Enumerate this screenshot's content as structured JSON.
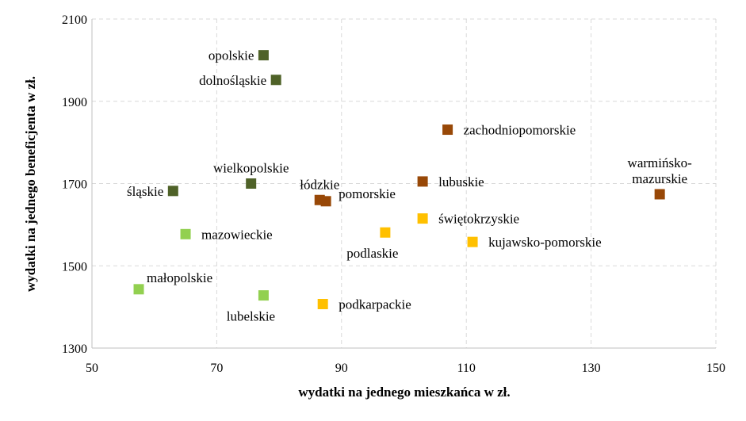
{
  "chart_data": {
    "type": "scatter",
    "xlabel": "wydatki na jednego mieszkańca w zł.",
    "ylabel": "wydatki na jednego beneficjenta w zł.",
    "xlim": [
      50,
      150
    ],
    "ylim": [
      1300,
      2100
    ],
    "xticks": [
      50,
      70,
      90,
      110,
      130,
      150
    ],
    "yticks": [
      1300,
      1500,
      1700,
      1900,
      2100
    ],
    "grid": true,
    "points": [
      {
        "label": "opolskie",
        "x": 77.5,
        "y": 2012,
        "color": "#4f6228",
        "label_pos": "left"
      },
      {
        "label": "dolnośląskie",
        "x": 79.5,
        "y": 1952,
        "color": "#4f6228",
        "label_pos": "left"
      },
      {
        "label": "śląskie",
        "x": 63,
        "y": 1682,
        "color": "#4f6228",
        "label_pos": "left"
      },
      {
        "label": "wielkopolskie",
        "x": 75.5,
        "y": 1700,
        "color": "#4f6228",
        "label_pos": "above"
      },
      {
        "label": "mazowieckie",
        "x": 65,
        "y": 1577,
        "color": "#92d050",
        "label_pos": "right"
      },
      {
        "label": "małopolskie",
        "x": 57.5,
        "y": 1443,
        "color": "#92d050",
        "label_pos": "above-right"
      },
      {
        "label": "lubelskie",
        "x": 77.5,
        "y": 1428,
        "color": "#92d050",
        "label_pos": "below-left"
      },
      {
        "label": "łódzkie",
        "x": 86.5,
        "y": 1660,
        "color": "#984807",
        "label_pos": "above"
      },
      {
        "label": "pomorskie",
        "x": 87.5,
        "y": 1657,
        "color": "#984807",
        "label_pos": "right-up"
      },
      {
        "label": "zachodniopomorskie",
        "x": 107,
        "y": 1831,
        "color": "#984807",
        "label_pos": "right"
      },
      {
        "label": "lubuskie",
        "x": 103,
        "y": 1705,
        "color": "#984807",
        "label_pos": "right"
      },
      {
        "label": "warmińsko-\nmazurskie",
        "x": 141,
        "y": 1674,
        "color": "#984807",
        "label_pos": "above"
      },
      {
        "label": "świętokrzyskie",
        "x": 103,
        "y": 1615,
        "color": "#ffc000",
        "label_pos": "right"
      },
      {
        "label": "podlaskie",
        "x": 97,
        "y": 1581,
        "color": "#ffc000",
        "label_pos": "below-left"
      },
      {
        "label": "kujawsko-pomorskie",
        "x": 111,
        "y": 1558,
        "color": "#ffc000",
        "label_pos": "right"
      },
      {
        "label": "podkarpackie",
        "x": 87,
        "y": 1407,
        "color": "#ffc000",
        "label_pos": "right"
      }
    ]
  }
}
